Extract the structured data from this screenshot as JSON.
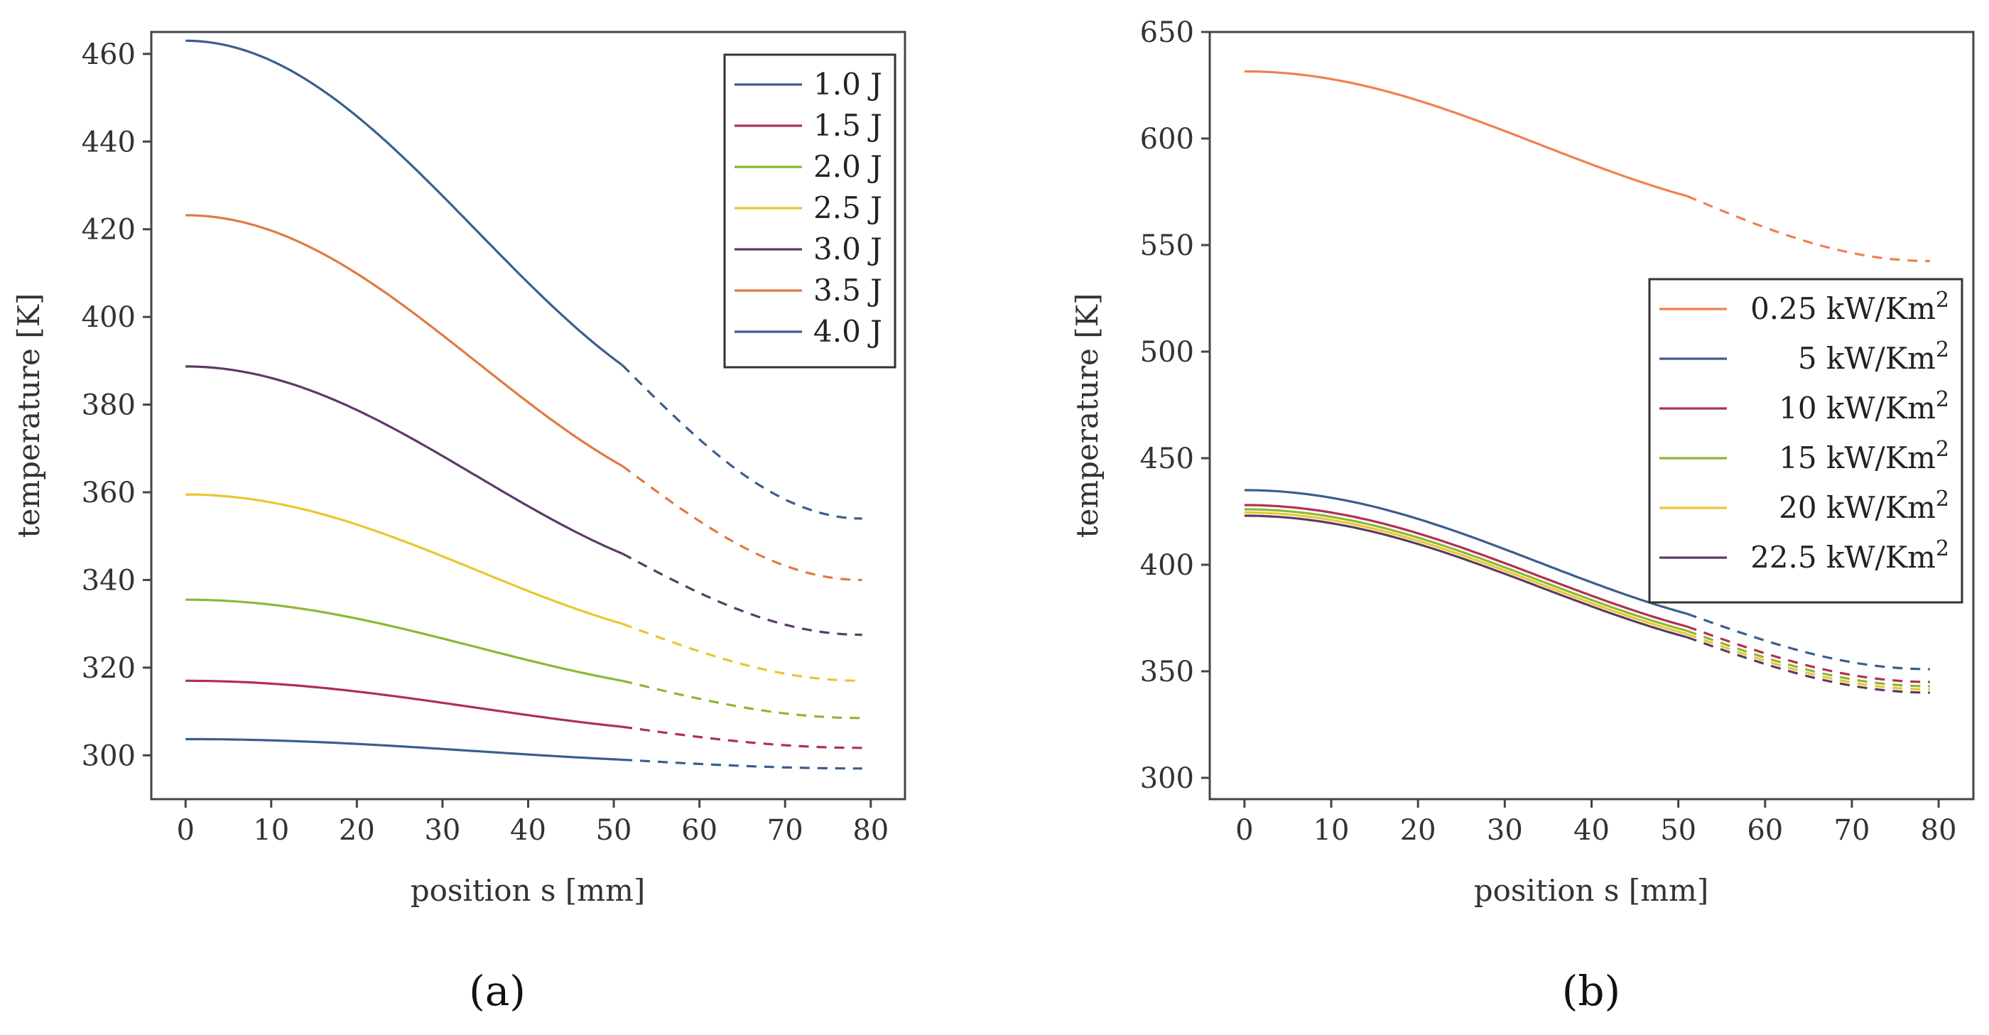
{
  "chart_data": [
    {
      "type": "line",
      "panel_label": "(a)",
      "title": "",
      "xlabel": "position s [mm]",
      "ylabel": "temperature [K]",
      "xlim": [
        -4,
        84
      ],
      "ylim": [
        290,
        465
      ],
      "xticks": [
        "0",
        "10",
        "20",
        "30",
        "40",
        "50",
        "60",
        "70",
        "80"
      ],
      "yticks": [
        "300",
        "320",
        "340",
        "360",
        "380",
        "400",
        "420",
        "440",
        "460"
      ],
      "solid_until_x": 51,
      "legend_position": "top-right",
      "series": [
        {
          "name": "1.0 J",
          "color": "#3a5e8c",
          "T0": 303.7,
          "Tsplit": 299.0,
          "Tend": 297.0
        },
        {
          "name": "1.5 J",
          "color": "#b03050",
          "T0": 317.0,
          "Tsplit": 306.5,
          "Tend": 301.7
        },
        {
          "name": "2.0 J",
          "color": "#8cb833",
          "T0": 335.5,
          "Tsplit": 317.0,
          "Tend": 308.5
        },
        {
          "name": "2.5 J",
          "color": "#e8c730",
          "T0": 359.5,
          "Tsplit": 330.0,
          "Tend": 317.0
        },
        {
          "name": "3.0 J",
          "color": "#5c3a66",
          "T0": 388.7,
          "Tsplit": 346.0,
          "Tend": 327.5
        },
        {
          "name": "3.5 J",
          "color": "#e07a40",
          "T0": 423.2,
          "Tsplit": 366.0,
          "Tend": 340.0
        },
        {
          "name": "4.0 J",
          "color": "#3a5e8c",
          "T0": 463.0,
          "Tsplit": 389.0,
          "Tend": 354.0
        }
      ]
    },
    {
      "type": "line",
      "panel_label": "(b)",
      "title": "",
      "xlabel": "position s [mm]",
      "ylabel": "temperature [K]",
      "xlim": [
        -4,
        84
      ],
      "ylim": [
        290,
        650
      ],
      "xticks": [
        "0",
        "10",
        "20",
        "30",
        "40",
        "50",
        "60",
        "70",
        "80"
      ],
      "yticks": [
        "300",
        "350",
        "400",
        "450",
        "500",
        "550",
        "600",
        "650"
      ],
      "solid_until_x": 51,
      "legend_position": "center-right",
      "series": [
        {
          "name": "0.25 kW/Km",
          "sup": "2",
          "color": "#f08050",
          "T0": 631.5,
          "Tsplit": 573.0,
          "Tend": 542.5
        },
        {
          "name": "5 kW/Km",
          "sup": "2",
          "color": "#3a5e8c",
          "T0": 435.0,
          "Tsplit": 377.0,
          "Tend": 351.0
        },
        {
          "name": "10 kW/Km",
          "sup": "2",
          "color": "#b03050",
          "T0": 428.0,
          "Tsplit": 371.0,
          "Tend": 345.0
        },
        {
          "name": "15 kW/Km",
          "sup": "2",
          "color": "#8cb833",
          "T0": 426.0,
          "Tsplit": 369.0,
          "Tend": 343.0
        },
        {
          "name": "20 kW/Km",
          "sup": "2",
          "color": "#e8c730",
          "T0": 424.5,
          "Tsplit": 367.5,
          "Tend": 341.5
        },
        {
          "name": "22.5 kW/Km",
          "sup": "2",
          "color": "#5c3a66",
          "T0": 423.0,
          "Tsplit": 366.0,
          "Tend": 340.0
        }
      ]
    }
  ]
}
